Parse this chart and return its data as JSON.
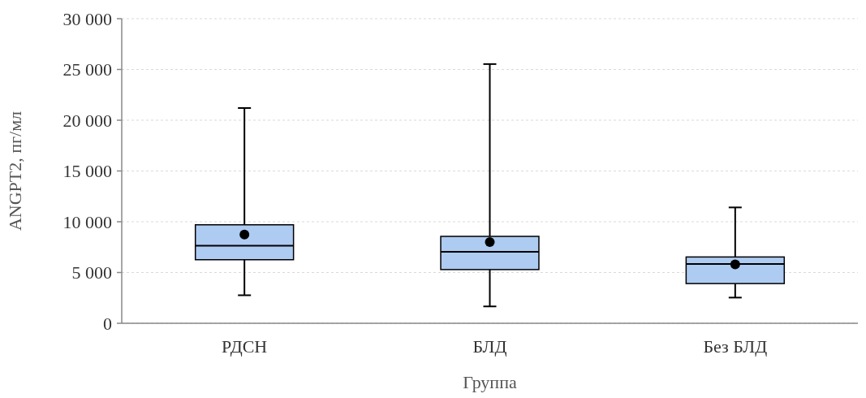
{
  "chart_data": {
    "type": "box",
    "xlabel": "Группа",
    "ylabel": "ANGPT2, пг/мл",
    "categories": [
      "РДСН",
      "БЛД",
      "Без БЛД"
    ],
    "color": "#aecbf2",
    "boxes": [
      {
        "low": 2760,
        "q1": 6260,
        "median": 7640,
        "q3": 9700,
        "high": 21200,
        "mean": 8740
      },
      {
        "low": 1660,
        "q1": 5290,
        "median": 7040,
        "q3": 8560,
        "high": 25530,
        "mean": 8000
      },
      {
        "low": 2530,
        "q1": 3910,
        "median": 5840,
        "q3": 6530,
        "high": 11410,
        "mean": 5800
      }
    ],
    "ylim": [
      0,
      30000
    ],
    "yticks": [
      {
        "value": 0,
        "label": "0"
      },
      {
        "value": 5000,
        "label": "5 000"
      },
      {
        "value": 10000,
        "label": "10 000"
      },
      {
        "value": 15000,
        "label": "15 000"
      },
      {
        "value": 20000,
        "label": "20 000"
      },
      {
        "value": 25000,
        "label": "25 000"
      },
      {
        "value": 30000,
        "label": "30 000"
      }
    ],
    "grid": "y"
  }
}
